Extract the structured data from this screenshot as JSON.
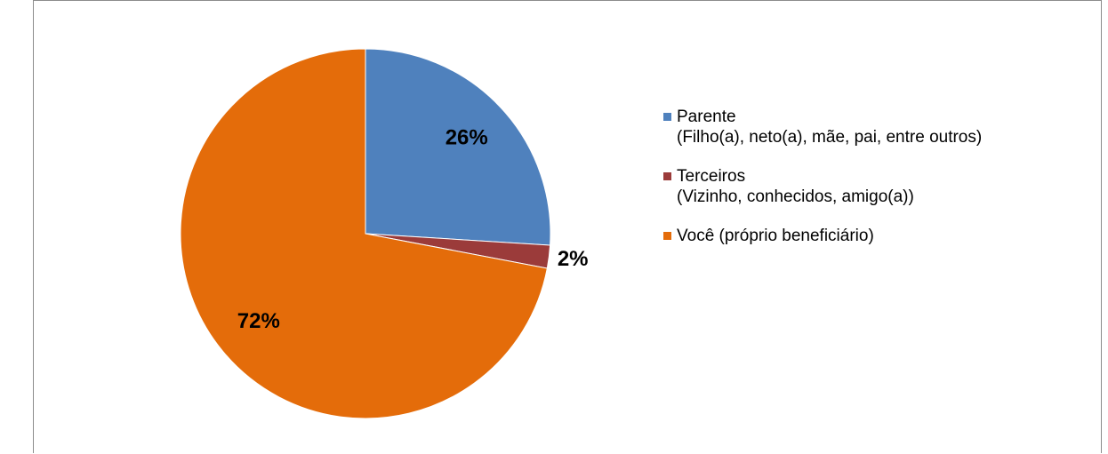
{
  "chart_data": {
    "type": "pie",
    "categories": [
      "Parente\n(Filho(a), neto(a), mãe, pai, entre outros)",
      "Terceiros\n(Vizinho, conhecidos, amigo(a))",
      "Você (próprio beneficiário)"
    ],
    "values": [
      26,
      2,
      72
    ],
    "value_labels": [
      "26%",
      "2%",
      "72%"
    ],
    "colors": [
      "#4f81bd",
      "#9b3b3a",
      "#e46c0a"
    ],
    "legend": "right"
  }
}
